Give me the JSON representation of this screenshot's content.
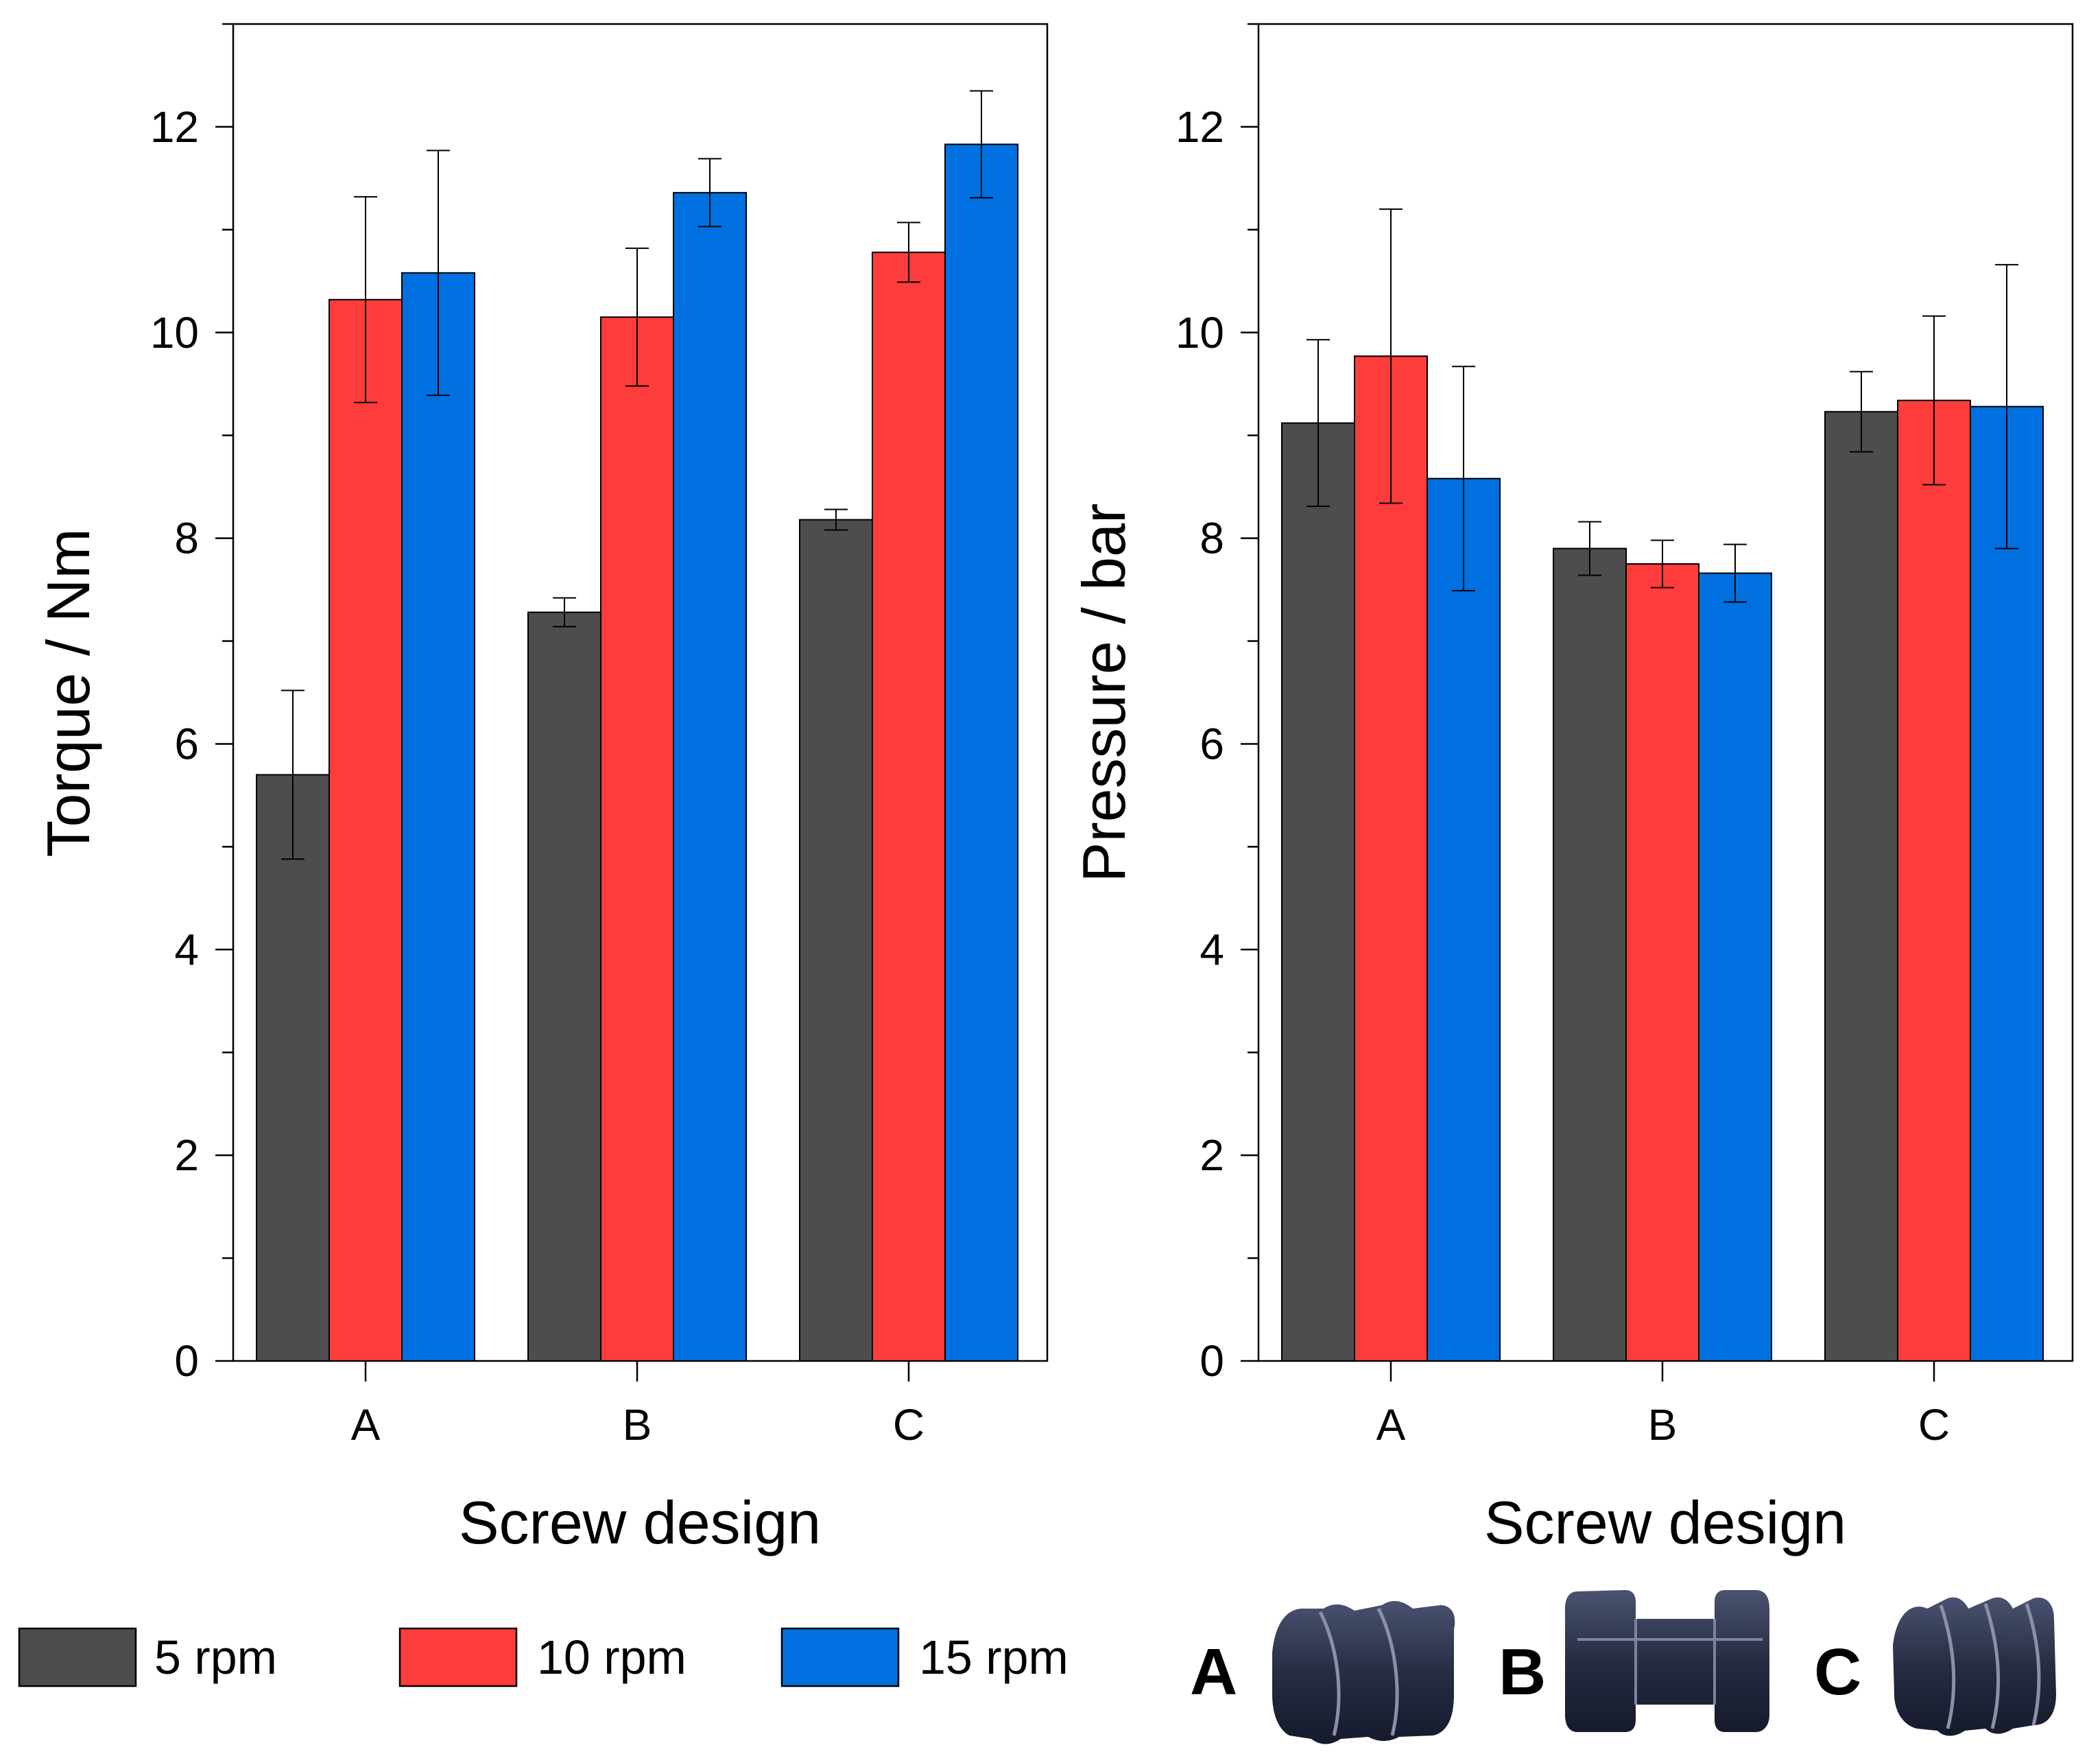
{
  "chart_data": [
    {
      "type": "bar",
      "title": "",
      "xlabel": "Screw design",
      "ylabel": "Torque / Nm",
      "categories": [
        "A",
        "B",
        "C"
      ],
      "ylim": [
        0,
        13
      ],
      "yticks": [
        0,
        2,
        4,
        6,
        8,
        10,
        12
      ],
      "yticklabels": [
        "0",
        "2",
        "4",
        "6",
        "8",
        "10",
        "12"
      ],
      "series": [
        {
          "name": "5 rpm",
          "values": [
            5.7,
            7.28,
            8.18
          ],
          "errors": [
            0.82,
            0.14,
            0.1
          ]
        },
        {
          "name": "10 rpm",
          "values": [
            10.32,
            10.15,
            10.78
          ],
          "errors": [
            1.0,
            0.67,
            0.29
          ]
        },
        {
          "name": "15 rpm",
          "values": [
            10.58,
            11.36,
            11.83
          ],
          "errors": [
            1.19,
            0.33,
            0.52
          ]
        }
      ]
    },
    {
      "type": "bar",
      "title": "",
      "xlabel": "Screw design",
      "ylabel": "Pressure / bar",
      "categories": [
        "A",
        "B",
        "C"
      ],
      "ylim": [
        0,
        13
      ],
      "yticks": [
        0,
        2,
        4,
        6,
        8,
        10,
        12
      ],
      "yticklabels": [
        "0",
        "2",
        "4",
        "6",
        "8",
        "10",
        "12"
      ],
      "series": [
        {
          "name": "5 rpm",
          "values": [
            9.12,
            7.9,
            9.23
          ],
          "errors": [
            0.81,
            0.26,
            0.39
          ]
        },
        {
          "name": "10 rpm",
          "values": [
            9.77,
            7.75,
            9.34
          ],
          "errors": [
            1.43,
            0.23,
            0.82
          ]
        },
        {
          "name": "15 rpm",
          "values": [
            8.58,
            7.66,
            9.28
          ],
          "errors": [
            1.09,
            0.28,
            1.38
          ]
        }
      ]
    }
  ],
  "legend": {
    "items": [
      {
        "label": "5 rpm",
        "color": "#4d4d4d"
      },
      {
        "label": "10 rpm",
        "color": "#ff3c3c"
      },
      {
        "label": "15 rpm",
        "color": "#0070e0"
      }
    ]
  },
  "screws": [
    {
      "label": "A",
      "shape": "screw-a"
    },
    {
      "label": "B",
      "shape": "screw-b"
    },
    {
      "label": "C",
      "shape": "screw-c"
    }
  ]
}
